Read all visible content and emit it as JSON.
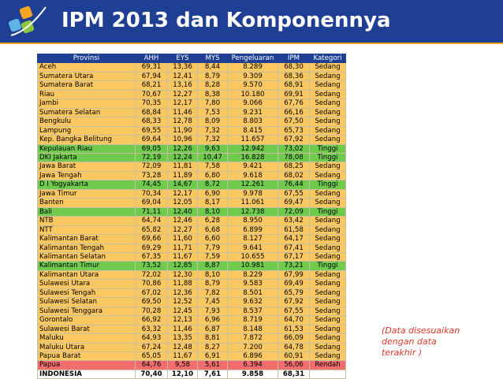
{
  "header": {
    "title": "IPM 2013 dan Komponennya",
    "bg_color": "#1f3f95",
    "accent_color": "#f5a623"
  },
  "logo": {
    "icon": "bps-logo-icon"
  },
  "table": {
    "columns": [
      "Provinsi",
      "AHH",
      "EYS",
      "MYS",
      "Pengeluaran",
      "IPM",
      "Kategori"
    ],
    "category_colors": {
      "Sedang": "#fbc760",
      "Tinggi": "#6fca4e",
      "Rendah": "#f26d6d"
    },
    "rows": [
      [
        "Aceh",
        "69,31",
        "13,36",
        "8,44",
        "8.289",
        "68,30",
        "Sedang"
      ],
      [
        "Sumatera Utara",
        "67,94",
        "12,41",
        "8,79",
        "9.309",
        "68,36",
        "Sedang"
      ],
      [
        "Sumatera Barat",
        "68,21",
        "13,16",
        "8,28",
        "9.570",
        "68,91",
        "Sedang"
      ],
      [
        "Riau",
        "70,67",
        "12,27",
        "8,38",
        "10.180",
        "69,91",
        "Sedang"
      ],
      [
        "Jambi",
        "70,35",
        "12,17",
        "7,80",
        "9.066",
        "67,76",
        "Sedang"
      ],
      [
        "Sumatera Selatan",
        "68,84",
        "11,46",
        "7,53",
        "9.231",
        "66,16",
        "Sedang"
      ],
      [
        "Bengkulu",
        "68,33",
        "12,78",
        "8,09",
        "8.803",
        "67,50",
        "Sedang"
      ],
      [
        "Lampung",
        "69,55",
        "11,90",
        "7,32",
        "8.415",
        "65,73",
        "Sedang"
      ],
      [
        "Kep. Bangka Belitung",
        "69,64",
        "10,96",
        "7,32",
        "11.657",
        "67,92",
        "Sedang"
      ],
      [
        "Kepulauan Riau",
        "69,05",
        "12,26",
        "9,63",
        "12.942",
        "73,02",
        "Tinggi"
      ],
      [
        "DKI Jakarta",
        "72,19",
        "12,24",
        "10,47",
        "16.828",
        "78,08",
        "Tinggi"
      ],
      [
        "Jawa Barat",
        "72,09",
        "11,81",
        "7,58",
        "9.421",
        "68,25",
        "Sedang"
      ],
      [
        "Jawa Tengah",
        "73,28",
        "11,89",
        "6,80",
        "9.618",
        "68,02",
        "Sedang"
      ],
      [
        "D I Yogyakarta",
        "74,45",
        "14,67",
        "8,72",
        "12.261",
        "76,44",
        "Tinggi"
      ],
      [
        "Jawa Timur",
        "70,34",
        "12,17",
        "6,90",
        "9.978",
        "67,55",
        "Sedang"
      ],
      [
        "Banten",
        "69,04",
        "12,05",
        "8,17",
        "11.061",
        "69,47",
        "Sedang"
      ],
      [
        "Bali",
        "71,11",
        "12,40",
        "8,10",
        "12.738",
        "72,09",
        "Tinggi"
      ],
      [
        "NTB",
        "64,74",
        "12,46",
        "6,28",
        "8.950",
        "63,42",
        "Sedang"
      ],
      [
        "NTT",
        "65,82",
        "12,27",
        "6,68",
        "6.899",
        "61,58",
        "Sedang"
      ],
      [
        "Kalimantan Barat",
        "69,66",
        "11,60",
        "6,60",
        "8.127",
        "64,17",
        "Sedang"
      ],
      [
        "Kalimantan Tengah",
        "69,29",
        "11,71",
        "7,79",
        "9.641",
        "67,41",
        "Sedang"
      ],
      [
        "Kalimantan Selatan",
        "67,35",
        "11,67",
        "7,59",
        "10.655",
        "67,17",
        "Sedang"
      ],
      [
        "Kalimantan Timur",
        "73,52",
        "12,85",
        "8,87",
        "10.981",
        "73,21",
        "Tinggi"
      ],
      [
        "Kalimantan Utara",
        "72,02",
        "12,30",
        "8,10",
        "8.229",
        "67,99",
        "Sedang"
      ],
      [
        "Sulawesi Utara",
        "70,86",
        "11,88",
        "8,79",
        "9.583",
        "69,49",
        "Sedang"
      ],
      [
        "Sulawesi Tengah",
        "67,02",
        "12,36",
        "7,82",
        "8.501",
        "65,79",
        "Sedang"
      ],
      [
        "Sulawesi Selatan",
        "69,50",
        "12,52",
        "7,45",
        "9.632",
        "67,92",
        "Sedang"
      ],
      [
        "Sulawesi Tenggara",
        "70,28",
        "12,45",
        "7,93",
        "8.537",
        "67,55",
        "Sedang"
      ],
      [
        "Gorontalo",
        "66,92",
        "12,13",
        "6,96",
        "8.719",
        "64,70",
        "Sedang"
      ],
      [
        "Sulawesi Barat",
        "63,32",
        "11,46",
        "6,87",
        "8.148",
        "61,53",
        "Sedang"
      ],
      [
        "Maluku",
        "64,93",
        "13,35",
        "8,81",
        "7.872",
        "66,09",
        "Sedang"
      ],
      [
        "Maluku Utara",
        "67,24",
        "12,48",
        "8,27",
        "7.200",
        "64,78",
        "Sedang"
      ],
      [
        "Papua Barat",
        "65,05",
        "11,67",
        "6,91",
        "6.896",
        "60,91",
        "Sedang"
      ],
      [
        "Papua",
        "64,76",
        "9,58",
        "5,61",
        "6.394",
        "56,06",
        "Rendah"
      ]
    ],
    "total": [
      "INDONESIA",
      "70,40",
      "12,10",
      "7,61",
      "9.858",
      "68,31",
      ""
    ]
  },
  "note": {
    "lines": [
      "(Data disesuaikan",
      "dengan data",
      "terakhir )"
    ],
    "color": "#e0352b"
  }
}
